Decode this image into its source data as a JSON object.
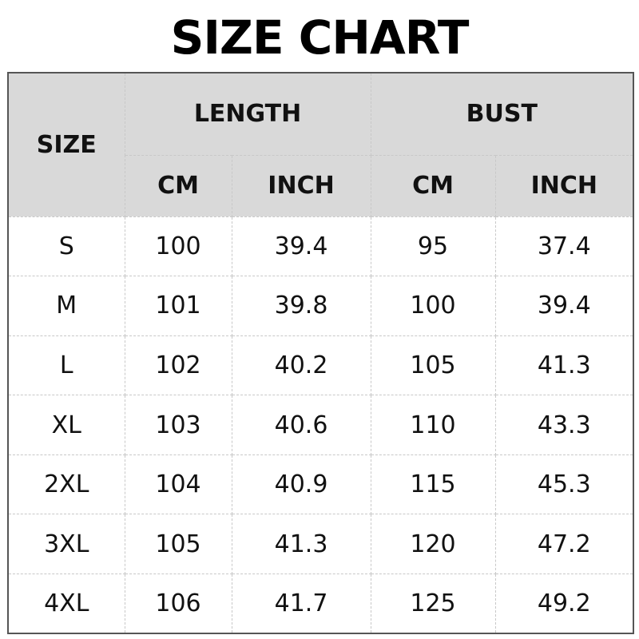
{
  "title": "SIZE CHART",
  "header": {
    "size": "SIZE",
    "groups": [
      "LENGTH",
      "BUST"
    ],
    "units": [
      "CM",
      "INCH",
      "CM",
      "INCH"
    ]
  },
  "rows": [
    [
      "S",
      "100",
      "39.4",
      "95",
      "37.4"
    ],
    [
      "M",
      "101",
      "39.8",
      "100",
      "39.4"
    ],
    [
      "L",
      "102",
      "40.2",
      "105",
      "41.3"
    ],
    [
      "XL",
      "103",
      "40.6",
      "110",
      "43.3"
    ],
    [
      "2XL",
      "104",
      "40.9",
      "115",
      "45.3"
    ],
    [
      "3XL",
      "105",
      "41.3",
      "120",
      "47.2"
    ],
    [
      "4XL",
      "106",
      "41.7",
      "125",
      "49.2"
    ]
  ]
}
